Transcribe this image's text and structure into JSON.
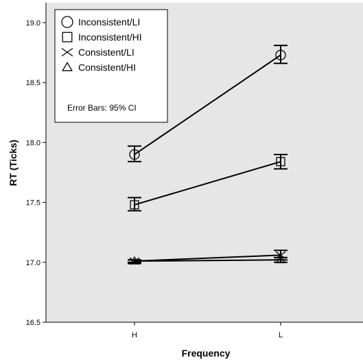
{
  "chart_data": {
    "type": "line",
    "xlabel": "Frequency",
    "ylabel": "RT (Ticks)",
    "categories": [
      "H",
      "L"
    ],
    "ylim": [
      16.5,
      19.0
    ],
    "yticks": [
      "16.5",
      "17.0",
      "17.5",
      "18.0",
      "18.5",
      "19.0"
    ],
    "ytick_values": [
      16.5,
      17.0,
      17.5,
      18.0,
      18.5,
      19.0
    ],
    "grid": false,
    "legend_position": "top-left",
    "error_bar_note": "Error Bars: 95% CI",
    "series": [
      {
        "name": "Inconsistent/LI",
        "marker": "circle",
        "values": [
          17.9,
          18.73
        ],
        "ci_low": [
          17.84,
          18.66
        ],
        "ci_high": [
          17.97,
          18.81
        ]
      },
      {
        "name": "Inconsistent/HI",
        "marker": "square",
        "values": [
          17.48,
          17.84
        ],
        "ci_low": [
          17.43,
          17.78
        ],
        "ci_high": [
          17.54,
          17.9
        ]
      },
      {
        "name": "Consistent/LI",
        "marker": "x",
        "values": [
          17.01,
          17.06
        ],
        "ci_low": [
          16.99,
          17.02
        ],
        "ci_high": [
          17.02,
          17.1
        ]
      },
      {
        "name": "Consistent/HI",
        "marker": "triangle",
        "values": [
          17.01,
          17.02
        ],
        "ci_low": [
          17.0,
          17.0
        ],
        "ci_high": [
          17.02,
          17.04
        ]
      }
    ],
    "colors": {
      "plot_background": "#e6e6e6",
      "line": "#000000",
      "legend_background": "#ffffff"
    }
  }
}
